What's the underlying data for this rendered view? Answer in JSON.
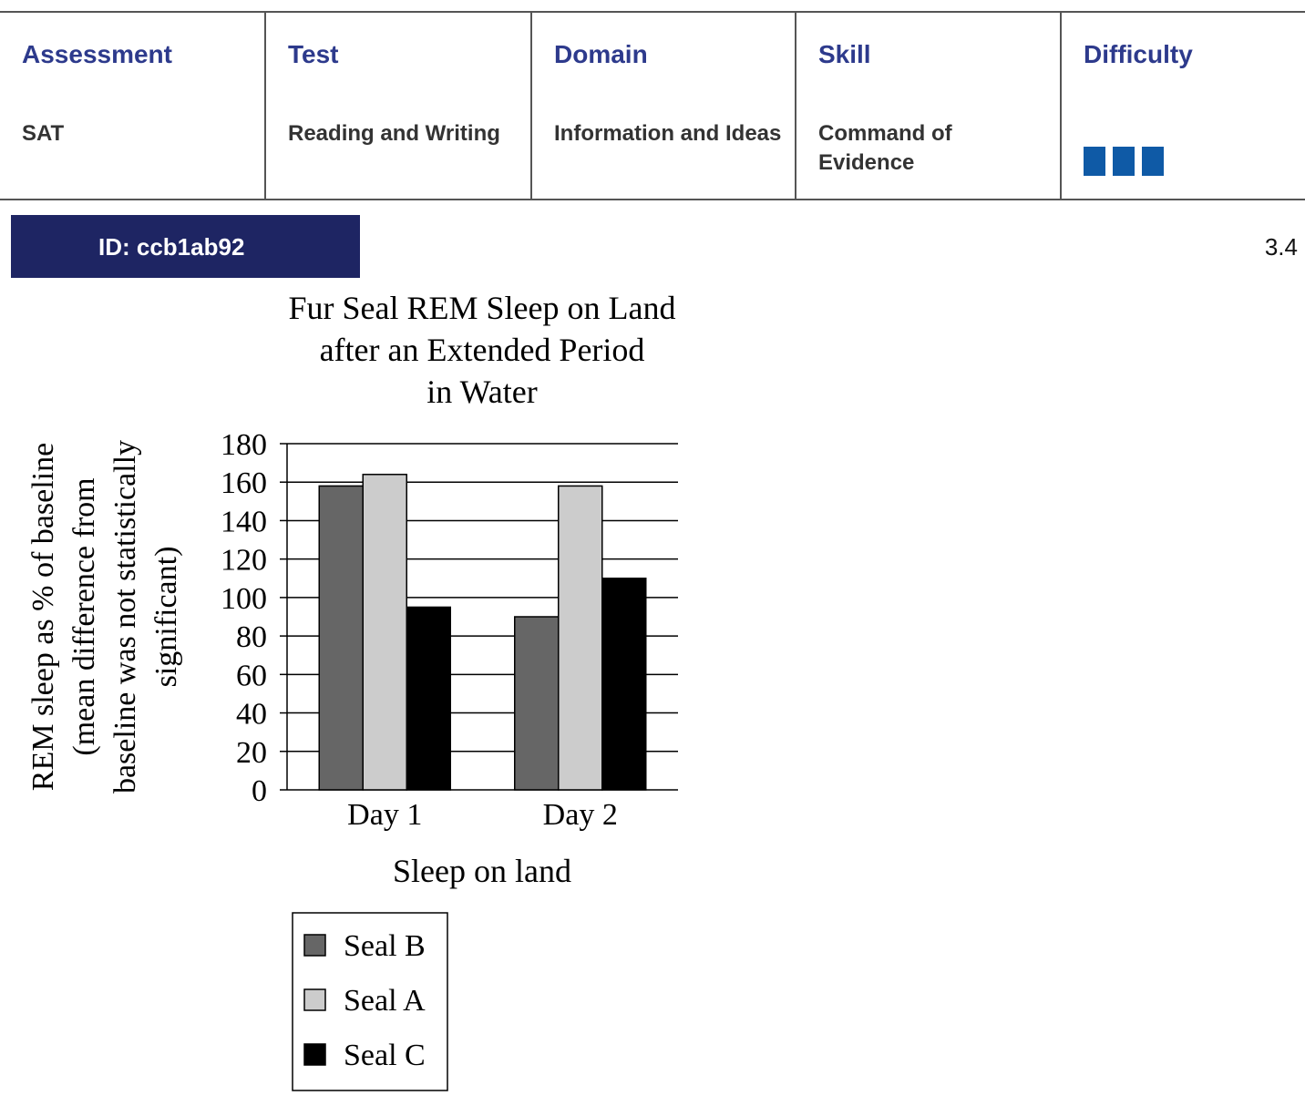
{
  "header": {
    "columns": [
      {
        "heading": "Assessment",
        "value": "SAT"
      },
      {
        "heading": "Test",
        "value": "Reading and Writing"
      },
      {
        "heading": "Domain",
        "value": "Information and Ideas"
      },
      {
        "heading": "Skill",
        "value": "Command of Evidence"
      },
      {
        "heading": "Difficulty",
        "value": ""
      }
    ],
    "difficulty_level": 3,
    "difficulty_color": "#0f5aa6"
  },
  "id_label": "ID: ccb1ab92",
  "version": "3.4",
  "chart_data": {
    "type": "bar",
    "title": [
      "Fur Seal REM Sleep on Land",
      "after an Extended Period",
      "in Water"
    ],
    "ylabel": [
      "REM sleep as % of baseline",
      "(mean difference from",
      "baseline was not statistically",
      "significant)"
    ],
    "xlabel": "Sleep on land",
    "categories": [
      "Day 1",
      "Day 2"
    ],
    "ylim": [
      0,
      180
    ],
    "yticks": [
      0,
      20,
      40,
      60,
      80,
      100,
      120,
      140,
      160,
      180
    ],
    "grid": true,
    "series": [
      {
        "name": "Seal B",
        "color": "#666666",
        "values": [
          158,
          90
        ]
      },
      {
        "name": "Seal A",
        "color": "#cccccc",
        "values": [
          164,
          158
        ]
      },
      {
        "name": "Seal C",
        "color": "#000000",
        "values": [
          95,
          110
        ]
      }
    ],
    "legend_position": "bottom"
  }
}
